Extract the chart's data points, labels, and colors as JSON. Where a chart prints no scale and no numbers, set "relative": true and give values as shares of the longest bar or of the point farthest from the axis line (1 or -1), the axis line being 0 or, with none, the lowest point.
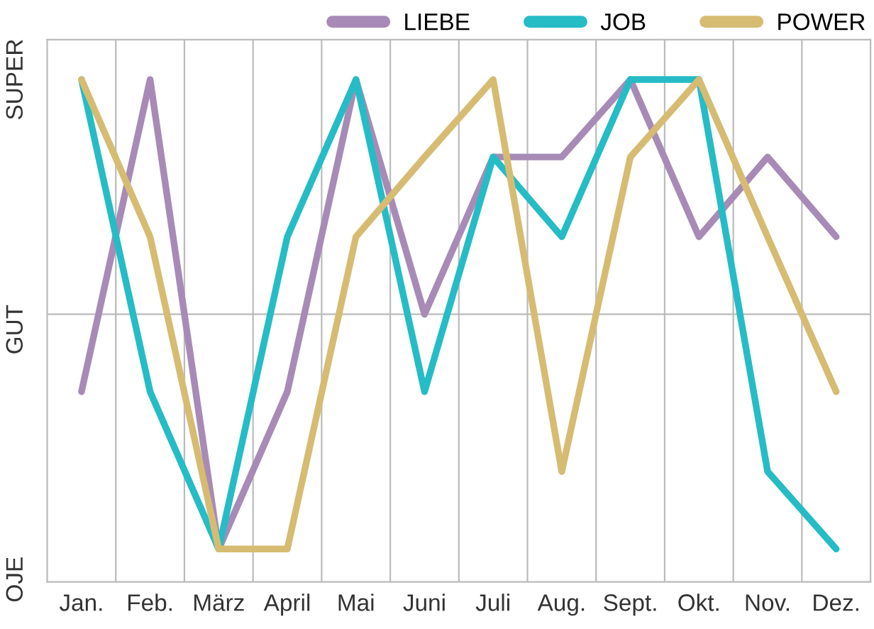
{
  "chart_data": {
    "type": "line",
    "relative": true,
    "categories": [
      "Jan.",
      "Feb.",
      "März",
      "April",
      "Mai",
      "Juni",
      "Juli",
      "Aug.",
      "Sept.",
      "Okt.",
      "Nov.",
      "Dez."
    ],
    "series": [
      {
        "name": "LIEBE",
        "color": "#a78bb6",
        "values": [
          -0.33,
          1,
          -1,
          -0.33,
          1,
          0,
          0.67,
          0.67,
          1,
          0.33,
          0.67,
          0.33
        ]
      },
      {
        "name": "JOB",
        "color": "#25bcc6",
        "values": [
          1,
          -0.33,
          -1,
          0.33,
          1,
          -0.33,
          0.67,
          0.33,
          1,
          1,
          -0.67,
          -1
        ]
      },
      {
        "name": "POWER",
        "color": "#d6bc72",
        "values": [
          1,
          0.33,
          -1,
          -1,
          0.33,
          0.67,
          1,
          -0.67,
          0.67,
          1,
          0.33,
          -0.33
        ]
      }
    ],
    "annotations": [
      "SUPER",
      "GUT",
      "OJE"
    ],
    "grid": "x",
    "legend": "top right",
    "marker": "none",
    "line_style": "solid"
  }
}
